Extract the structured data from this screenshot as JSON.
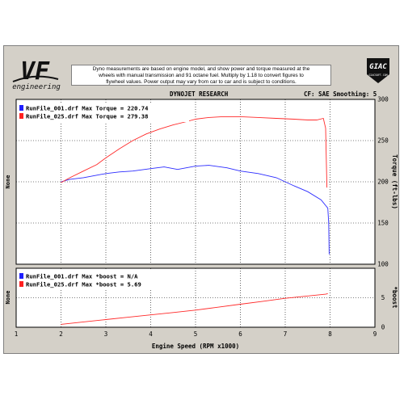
{
  "branding": {
    "logo_text": "VF",
    "logo_subtext": "engineering",
    "giac_text": "GIAC",
    "giac_subtext": "GIACSOFT.COM"
  },
  "disclaimer": [
    "Dyno measurements are based on engine model, and show power and torque measured at the",
    "wheels with manual transmission and 91 octane fuel.  Multiply by 1.18 to convert figures to",
    "flywheel values.  Power output may vary from car to car and is subject to conditions."
  ],
  "header": {
    "title": "DYNOJET RESEARCH",
    "settings": "CF: SAE  Smoothing: 5"
  },
  "chart_data": [
    {
      "type": "line",
      "title": "",
      "xlabel": "Engine Speed (RPM x1000)",
      "ylabel": "Torque (ft-lbs)",
      "left_label": "None",
      "xlim": [
        1,
        9
      ],
      "ylim": [
        100,
        300
      ],
      "x_ticks": [
        1,
        2,
        3,
        4,
        5,
        6,
        7,
        8,
        9
      ],
      "y_ticks": [
        100,
        150,
        200,
        250,
        300
      ],
      "grid": true,
      "legend": [
        {
          "label": "RunFile_001.drf Max Torque = 220.74",
          "color": "#1f1fff"
        },
        {
          "label": "RunFile_025.drf Max Torque = 279.38",
          "color": "#ff2020"
        }
      ],
      "series": [
        {
          "color": "#2b2bff",
          "x": [
            2.0,
            2.2,
            2.5,
            2.8,
            3.0,
            3.3,
            3.6,
            4.0,
            4.3,
            4.6,
            5.0,
            5.3,
            5.7,
            6.0,
            6.4,
            6.8,
            7.2,
            7.5,
            7.8,
            7.95,
            7.97,
            7.98
          ],
          "y": [
            200,
            203,
            205,
            208,
            210,
            212,
            213,
            216,
            218,
            215,
            219,
            220,
            217,
            213,
            210,
            205,
            195,
            188,
            178,
            168,
            150,
            112
          ]
        },
        {
          "color": "#ff2a2a",
          "x": [
            2.0,
            2.2,
            2.5,
            2.8,
            3.0,
            3.3,
            3.6,
            3.9,
            4.2,
            4.5,
            4.8,
            5.0,
            5.3,
            5.6,
            6.0,
            6.4,
            6.8,
            7.2,
            7.5,
            7.7,
            7.85,
            7.9,
            7.93
          ],
          "y": [
            199,
            205,
            213,
            221,
            229,
            240,
            250,
            258,
            264,
            269,
            273,
            276,
            278,
            279,
            279,
            278,
            277,
            276,
            275,
            275,
            277,
            265,
            193
          ]
        }
      ]
    },
    {
      "type": "line",
      "title": "",
      "xlabel": "Engine Speed (RPM x1000)",
      "ylabel": "*boost",
      "left_label": "None",
      "xlim": [
        1,
        9
      ],
      "ylim": [
        0,
        10
      ],
      "x_ticks": [
        1,
        2,
        3,
        4,
        5,
        6,
        7,
        8,
        9
      ],
      "y_ticks": [
        0,
        5
      ],
      "grid": true,
      "legend": [
        {
          "label": "RunFile_001.drf Max *boost = N/A",
          "color": "#1f1fff"
        },
        {
          "label": "RunFile_025.drf Max *boost = 5.69",
          "color": "#ff2020"
        }
      ],
      "series": [
        {
          "color": "#ff2a2a",
          "x": [
            2.0,
            2.5,
            3.0,
            3.5,
            4.0,
            4.5,
            5.0,
            5.5,
            6.0,
            6.5,
            7.0,
            7.5,
            7.9,
            7.95
          ],
          "y": [
            0.5,
            0.9,
            1.3,
            1.7,
            2.1,
            2.5,
            2.9,
            3.4,
            3.9,
            4.4,
            4.9,
            5.3,
            5.6,
            5.7
          ]
        }
      ]
    }
  ]
}
